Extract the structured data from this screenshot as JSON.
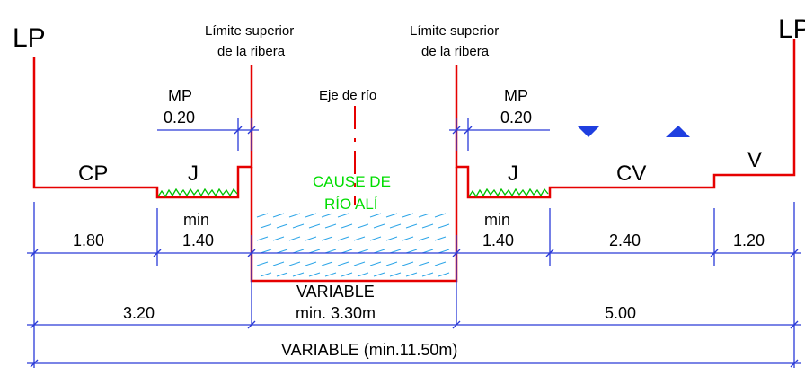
{
  "labels": {
    "lp_left": "LP",
    "lp_right": "LP",
    "limit_left_1": "Límite superior",
    "limit_left_2": "de la ribera",
    "limit_right_1": "Límite superior",
    "limit_right_2": "de la ribera",
    "axis": "Eje de río",
    "mp_left": "MP",
    "mp_left_val": "0.20",
    "mp_right": "MP",
    "mp_right_val": "0.20",
    "cp": "CP",
    "j_left": "J",
    "j_right": "J",
    "cv": "CV",
    "v": "V",
    "cause_1": "CAUSE DE",
    "cause_2": "RÍO ALÍ",
    "min_left": "min",
    "min_right": "min"
  },
  "dimensions": {
    "row1": [
      "1.80",
      "1.40",
      "1.40",
      "2.40",
      "1.20"
    ],
    "row2_left": "3.20",
    "row2_mid_1": "VARIABLE",
    "row2_mid_2": "min. 3.30m",
    "row2_right": "5.00",
    "row3": "VARIABLE (min.11.50m)"
  },
  "colors": {
    "section": "#e60000",
    "dimension": "#2a3ad8",
    "vegetation": "#00c000",
    "water": "#2fa6e8",
    "label_green": "#00dd00"
  }
}
